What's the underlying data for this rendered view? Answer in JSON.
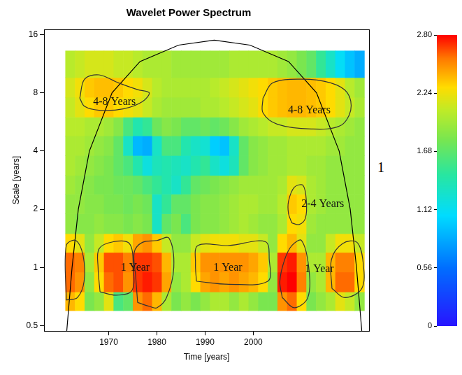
{
  "chart_data": {
    "type": "heatmap",
    "title": "Wavelet Power Spectrum",
    "x_label": "Time [years]",
    "y_label": "Scale [years]",
    "log": "y",
    "grid": false,
    "xlim": [
      1956.6,
      2024
    ],
    "xticks": [
      1970,
      1980,
      1990,
      2000
    ],
    "ylim": [
      0.47,
      17
    ],
    "yticks": [
      0.5,
      1,
      2,
      4,
      8,
      16
    ],
    "x_edges": [
      1961,
      1963,
      1965,
      1967,
      1969,
      1971,
      1973,
      1975,
      1977,
      1979,
      1981,
      1983,
      1985,
      1987,
      1989,
      1991,
      1993,
      1995,
      1997,
      1999,
      2001,
      2003,
      2005,
      2007,
      2009,
      2011,
      2013,
      2015,
      2017,
      2019,
      2021,
      2023
    ],
    "y_edges": [
      0.6,
      0.75,
      0.95,
      1.2,
      1.5,
      1.9,
      2.4,
      3,
      3.8,
      4.8,
      6,
      7.6,
      9.6,
      13.2
    ],
    "cells": [
      [
        2.4,
        2.3,
        1.8,
        1.9,
        2.2,
        1.6,
        1.7,
        2.5,
        2.6,
        2.4,
        2.0,
        1.8,
        1.9,
        1.8,
        1.9,
        2.0,
        2.0,
        1.9,
        2.0,
        1.9,
        1.8,
        1.8,
        2.5,
        2.6,
        2.3,
        1.8,
        1.9,
        2.0,
        2.2,
        2.1,
        1.9
      ],
      [
        2.6,
        2.5,
        1.9,
        2.3,
        2.6,
        2.65,
        2.5,
        2.7,
        2.75,
        2.7,
        2.45,
        1.9,
        2.0,
        2.3,
        2.45,
        2.5,
        2.45,
        2.5,
        2.45,
        2.4,
        2.3,
        1.9,
        2.75,
        2.8,
        2.55,
        1.9,
        2.0,
        2.4,
        2.6,
        2.6,
        2.3
      ],
      [
        2.6,
        2.55,
        2.0,
        2.35,
        2.65,
        2.65,
        2.55,
        2.7,
        2.7,
        2.65,
        2.4,
        2.0,
        2.0,
        2.35,
        2.5,
        2.5,
        2.5,
        2.5,
        2.5,
        2.45,
        2.35,
        2.0,
        2.7,
        2.75,
        2.5,
        2.0,
        2.0,
        2.4,
        2.55,
        2.55,
        2.3
      ],
      [
        2.3,
        2.2,
        1.9,
        2.1,
        2.3,
        2.35,
        2.25,
        2.45,
        2.5,
        2.35,
        2.1,
        1.9,
        1.9,
        2.1,
        2.2,
        2.25,
        2.25,
        2.25,
        2.2,
        2.2,
        2.1,
        1.9,
        2.3,
        2.4,
        2.2,
        1.9,
        1.9,
        2.1,
        2.25,
        2.25,
        2.1
      ],
      [
        1.9,
        1.85,
        1.85,
        1.9,
        1.85,
        1.85,
        1.8,
        1.85,
        1.8,
        1.3,
        1.7,
        1.8,
        1.6,
        1.8,
        1.85,
        1.85,
        1.9,
        1.95,
        2.0,
        1.95,
        1.9,
        1.9,
        2.0,
        2.3,
        2.25,
        1.95,
        1.9,
        1.9,
        1.9,
        1.9,
        1.9
      ],
      [
        1.9,
        1.9,
        1.85,
        1.85,
        1.8,
        1.8,
        1.75,
        1.8,
        1.75,
        1.3,
        1.5,
        1.7,
        1.7,
        1.8,
        1.85,
        1.85,
        1.9,
        1.95,
        2.0,
        2.0,
        1.95,
        1.95,
        2.05,
        2.35,
        2.3,
        2.0,
        1.95,
        1.9,
        1.9,
        1.9,
        1.9
      ],
      [
        1.95,
        1.9,
        1.85,
        1.8,
        1.8,
        1.75,
        1.75,
        1.7,
        1.6,
        1.5,
        1.4,
        1.3,
        1.5,
        1.7,
        1.75,
        1.8,
        1.85,
        1.9,
        1.95,
        1.95,
        1.95,
        1.95,
        2.0,
        2.2,
        2.15,
        2.0,
        1.95,
        1.9,
        1.9,
        1.9,
        1.9
      ],
      [
        2.0,
        1.95,
        1.9,
        1.85,
        1.8,
        1.7,
        1.6,
        1.4,
        1.2,
        1.35,
        1.4,
        1.35,
        1.3,
        1.4,
        1.5,
        1.3,
        1.2,
        1.35,
        1.7,
        1.85,
        1.9,
        1.95,
        1.95,
        2.0,
        2.0,
        1.95,
        1.95,
        1.9,
        1.9,
        1.9,
        1.9
      ],
      [
        2.0,
        2.0,
        1.95,
        1.9,
        1.85,
        1.7,
        1.3,
        0.9,
        0.85,
        1.3,
        1.6,
        1.6,
        1.4,
        1.3,
        1.25,
        1.0,
        0.95,
        1.3,
        1.7,
        1.85,
        1.9,
        1.95,
        1.95,
        2.0,
        2.0,
        2.0,
        2.0,
        1.95,
        1.95,
        1.9,
        1.9
      ],
      [
        2.05,
        2.05,
        2.0,
        2.0,
        1.95,
        1.85,
        1.6,
        1.4,
        1.5,
        1.75,
        1.85,
        1.8,
        1.7,
        1.7,
        1.75,
        1.7,
        1.75,
        1.85,
        1.95,
        2.0,
        2.05,
        2.1,
        2.1,
        2.15,
        2.15,
        2.15,
        2.1,
        2.05,
        2.0,
        1.95,
        1.9
      ],
      [
        2.1,
        2.2,
        2.3,
        2.35,
        2.35,
        2.3,
        2.25,
        2.2,
        2.1,
        2.0,
        1.95,
        1.95,
        1.95,
        1.95,
        2.0,
        2.0,
        2.05,
        2.1,
        2.15,
        2.2,
        2.3,
        2.35,
        2.38,
        2.4,
        2.4,
        2.38,
        2.35,
        2.3,
        2.2,
        2.1,
        2.0
      ],
      [
        2.15,
        2.25,
        2.35,
        2.38,
        2.38,
        2.35,
        2.3,
        2.25,
        2.15,
        2.05,
        2.0,
        2.0,
        2.0,
        2.0,
        2.0,
        2.05,
        2.1,
        2.15,
        2.2,
        2.25,
        2.3,
        2.35,
        2.38,
        2.4,
        2.4,
        2.38,
        2.35,
        2.3,
        2.2,
        2.05,
        1.95
      ],
      [
        2.05,
        2.1,
        2.15,
        2.15,
        2.15,
        2.1,
        2.1,
        2.05,
        2.0,
        2.0,
        2.0,
        1.95,
        1.95,
        1.95,
        1.95,
        1.95,
        1.95,
        2.0,
        2.0,
        2.0,
        2.0,
        2.0,
        1.95,
        1.9,
        1.8,
        1.7,
        1.5,
        1.3,
        1.1,
        0.95,
        0.85
      ]
    ],
    "color_range": [
      0,
      2.8
    ],
    "color_ticks": [
      0,
      0.56,
      1.12,
      1.68,
      2.24,
      {
        "value": 2.8,
        "label": "2.80"
      }
    ],
    "cone_of_influence": {
      "x": [
        1961.3,
        1962.4,
        1963.7,
        1966,
        1970.7,
        1976.5,
        1984.5,
        1991.9,
        1999.3,
        2007.3,
        2013.1,
        2017.8,
        2020.1,
        2021.4,
        2022.5
      ],
      "y": [
        0.47,
        1,
        2,
        4,
        8,
        11.6,
        14.1,
        14.95,
        14.1,
        11.6,
        8,
        4,
        2,
        1,
        0.47
      ]
    },
    "contours": [
      {
        "x": [
          1961.2,
          1963.5,
          1964.9,
          1964.7,
          1963.2,
          1961.2
        ],
        "y": [
          0.68,
          0.7,
          0.85,
          1.15,
          1.38,
          1.3
        ]
      },
      {
        "x": [
          1968.2,
          1971.5,
          1974.8,
          1975.1,
          1974.3,
          1971,
          1968,
          1967.8
        ],
        "y": [
          0.75,
          0.72,
          0.76,
          1.0,
          1.33,
          1.36,
          1.25,
          1.0
        ]
      },
      {
        "x": [
          1976,
          1978.5,
          1980,
          1982,
          1983.5,
          1982.5,
          1980,
          1977,
          1975.3,
          1975.6
        ],
        "y": [
          0.66,
          0.63,
          0.62,
          0.7,
          1.0,
          1.42,
          1.38,
          1.35,
          1.2,
          0.9
        ]
      },
      {
        "x": [
          1988.2,
          1995,
          2003,
          2003.3,
          2002.5,
          1995,
          1988.5,
          1988
        ],
        "y": [
          0.85,
          0.82,
          0.85,
          1.1,
          1.36,
          1.3,
          1.3,
          1.05
        ]
      },
      {
        "x": [
          2006,
          2008.5,
          2011.3,
          2011.5,
          2010,
          2008,
          2006.5,
          2005.5
        ],
        "y": [
          0.7,
          0.62,
          0.7,
          1.0,
          1.38,
          1.3,
          1.1,
          0.85
        ]
      },
      {
        "x": [
          2016.3,
          2019,
          2022.5,
          2022.8,
          2021.5,
          2018.5,
          2016.2
        ],
        "y": [
          0.78,
          0.7,
          0.78,
          1.05,
          1.35,
          1.33,
          1.1
        ]
      },
      {
        "x": [
          2008,
          2009.5,
          2010.8,
          2011,
          2010.3,
          2008.5,
          2007.3,
          2007.3
        ],
        "y": [
          1.7,
          1.67,
          1.8,
          2.2,
          2.66,
          2.6,
          2.2,
          1.9
        ]
      },
      {
        "x": [
          1964,
          1965,
          1968,
          1972,
          1976,
          1978.4,
          1977,
          1973,
          1968,
          1965
        ],
        "y": [
          7.5,
          9.4,
          9.9,
          9.0,
          8.3,
          8.0,
          7.2,
          6.6,
          6.5,
          6.8
        ]
      },
      {
        "x": [
          2002,
          2004,
          2010,
          2016,
          2019.5,
          2020.2,
          2018,
          2012,
          2005,
          2002
        ],
        "y": [
          7.5,
          9.0,
          9.4,
          9.0,
          8.0,
          6.5,
          5.4,
          5.2,
          5.5,
          6.3
        ]
      }
    ],
    "annotations": [
      {
        "text": "4-8 Years",
        "x": 1971.2,
        "y": 7.17
      },
      {
        "text": "4-8 Years",
        "x": 2011.6,
        "y": 6.48
      },
      {
        "text": "2-4 Years",
        "x": 2014.4,
        "y": 2.12
      },
      {
        "text": "1 Year",
        "x": 1975.5,
        "y": 1.0
      },
      {
        "text": "1 Year",
        "x": 1994.7,
        "y": 1.0
      },
      {
        "text": "1 Year",
        "x": 2013.7,
        "y": 0.98
      }
    ],
    "side_text": "1"
  }
}
